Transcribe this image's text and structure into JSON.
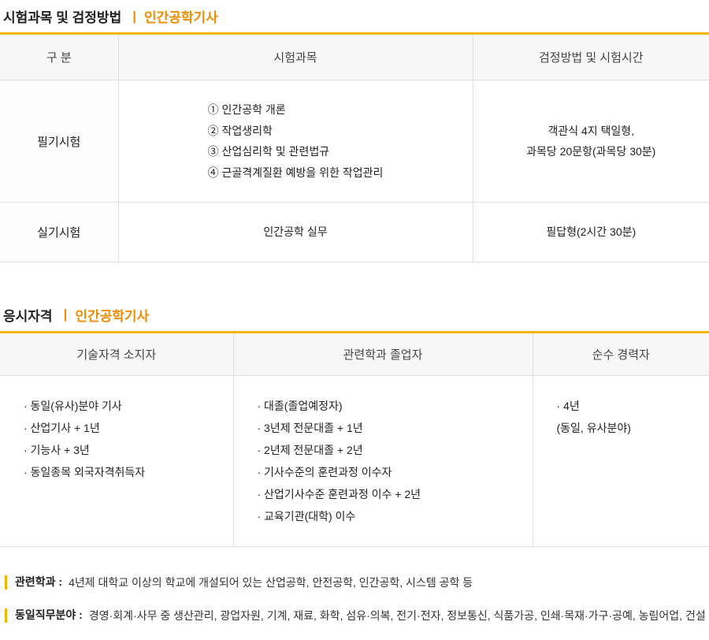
{
  "section1": {
    "title_main": "시험과목 및 검정방법",
    "title_sub": "인간공학기사",
    "headers": [
      "구 분",
      "시험과목",
      "검정방법 및 시험시간"
    ],
    "rows": [
      {
        "label": "필기시험",
        "subjects": [
          "① 인간공학 개론",
          "② 작업생리학",
          "③ 산업심리학 및 관련법규",
          "④ 근골격계질환 예방을 위한 작업관리"
        ],
        "method": "객관식 4지 택일형,<br>과목당 20문항(과목당 30분)"
      },
      {
        "label": "실기시험",
        "subjects_single": "인간공학 실무",
        "method_single": "필답형(2시간 30분)"
      }
    ]
  },
  "section2": {
    "title_main": "응시자격",
    "title_sub": "인간공학기사",
    "headers": [
      "기술자격 소지자",
      "관련학과 졸업자",
      "순수 경력자"
    ],
    "col1_items": [
      "· 동일(유사)분야 기사",
      "· 산업기사 + 1년",
      "· 기능사 + 3년",
      "· 동일종목 외국자격취득자"
    ],
    "col2_items": [
      "· 대졸(졸업예정자)",
      "· 3년제 전문대졸 + 1년",
      "· 2년제 전문대졸 + 2년",
      "· 기사수준의 훈련과정 이수자",
      "· 산업기사수준 훈련과정 이수 + 2년",
      "· 교육기관(대학) 이수"
    ],
    "col3_items": [
      "· 4년",
      "  (동일, 유사분야)"
    ]
  },
  "notes": {
    "n1_label": "관련학과 :",
    "n1_text": "4년제 대학교 이상의 학교에 개설되어 있는 산업공학, 안전공학, 인간공학, 시스템 공학 등",
    "n2_label": "동일직무분야 :",
    "n2_text": "경영·회계·사무 중 생산관리, 광업자원, 기계, 재료, 화학, 섬유·의복, 전기·전자, 정보통신, 식품가공, 인쇄·목재·가구·공예, 농림어업, 건설"
  },
  "colors": {
    "accent_orange": "#f28c00",
    "border_yellow": "#f2b600",
    "header_bg": "#f7f7f7",
    "text_main": "#222222",
    "text_body": "#333333",
    "border_grey": "#e0e0e0"
  }
}
